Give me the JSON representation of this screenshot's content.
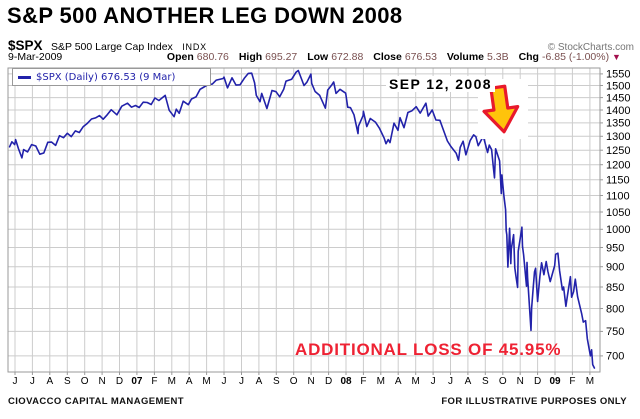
{
  "header": {
    "title": "S&P 500 ANOTHER LEG DOWN 2008",
    "symbol": "$SPX",
    "symbol_name": "S&P 500 Large Cap Index",
    "exchange": "INDX",
    "copyright": "© StockCharts.com",
    "quote": {
      "date": "9-Mar-2009",
      "items": [
        {
          "label": "Open",
          "value": "680.76"
        },
        {
          "label": "High",
          "value": "695.27"
        },
        {
          "label": "Low",
          "value": "672.88"
        },
        {
          "label": "Close",
          "value": "676.53"
        },
        {
          "label": "Volume",
          "value": "5.3B"
        },
        {
          "label": "Chg",
          "value": "-6.85 (-1.00%)"
        }
      ],
      "direction_icon": "▼"
    }
  },
  "legend": {
    "label": "$SPX (Daily) 676.53 (9 Mar)"
  },
  "footer": {
    "left": "CIOVACCO CAPITAL MANAGEMENT",
    "right": "FOR ILLUSTRATIVE PURPOSES ONLY"
  },
  "colors": {
    "line": "#2222aa",
    "grid": "#cccccc",
    "plot_border": "#999999",
    "axis_text": "#000000",
    "loss_text": "#ee2233",
    "arrow_fill": "#ffc30b",
    "arrow_stroke": "#e8192c",
    "quote_value": "#7a5050",
    "triangle": "#a3104d"
  },
  "chart_data": {
    "type": "line",
    "symbol": "$SPX",
    "timeframe": "Daily",
    "last_price": 676.53,
    "last_date": "2009-03-09",
    "annotations": {
      "event_label": "SEP 12, 2008",
      "loss_label": "ADDITIONAL LOSS OF 45.95%",
      "arrow": "yellow-red block arrow pointing down at Sep-Oct 2008 breakdown"
    },
    "x_axis": {
      "start": "Jun 2006",
      "end": "Mar 2009",
      "tick_labels": [
        "J",
        "J",
        "A",
        "S",
        "O",
        "N",
        "D",
        "07",
        "F",
        "M",
        "A",
        "M",
        "J",
        "J",
        "A",
        "S",
        "O",
        "N",
        "D",
        "08",
        "F",
        "M",
        "A",
        "M",
        "J",
        "J",
        "A",
        "S",
        "O",
        "N",
        "D",
        "09",
        "F",
        "M"
      ]
    },
    "y_axis": {
      "scale": "log",
      "min": 664,
      "max": 1576,
      "tick_values": [
        1550,
        1500,
        1450,
        1400,
        1350,
        1300,
        1250,
        1200,
        1150,
        1100,
        1050,
        1000,
        950,
        900,
        850,
        800,
        750,
        700
      ],
      "position": "right"
    },
    "grid": true,
    "legend_position": "top-left",
    "series": [
      {
        "name": "$SPX (Daily) close",
        "points": [
          [
            "2006-05-22",
            1262
          ],
          [
            "2006-05-26",
            1280
          ],
          [
            "2006-05-31",
            1270
          ],
          [
            "2006-06-02",
            1288
          ],
          [
            "2006-06-07",
            1256
          ],
          [
            "2006-06-13",
            1223
          ],
          [
            "2006-06-16",
            1252
          ],
          [
            "2006-06-23",
            1244
          ],
          [
            "2006-06-30",
            1270
          ],
          [
            "2006-07-07",
            1265
          ],
          [
            "2006-07-14",
            1236
          ],
          [
            "2006-07-21",
            1240
          ],
          [
            "2006-07-28",
            1278
          ],
          [
            "2006-08-04",
            1279
          ],
          [
            "2006-08-11",
            1267
          ],
          [
            "2006-08-18",
            1302
          ],
          [
            "2006-08-25",
            1295
          ],
          [
            "2006-09-01",
            1311
          ],
          [
            "2006-09-08",
            1299
          ],
          [
            "2006-09-15",
            1320
          ],
          [
            "2006-09-22",
            1314
          ],
          [
            "2006-09-29",
            1336
          ],
          [
            "2006-10-06",
            1349
          ],
          [
            "2006-10-13",
            1365
          ],
          [
            "2006-10-20",
            1369
          ],
          [
            "2006-10-27",
            1378
          ],
          [
            "2006-11-03",
            1364
          ],
          [
            "2006-11-10",
            1381
          ],
          [
            "2006-11-17",
            1401
          ],
          [
            "2006-11-27",
            1381
          ],
          [
            "2006-12-05",
            1415
          ],
          [
            "2006-12-15",
            1427
          ],
          [
            "2006-12-22",
            1411
          ],
          [
            "2006-12-29",
            1418
          ],
          [
            "2007-01-05",
            1410
          ],
          [
            "2007-01-12",
            1431
          ],
          [
            "2007-01-19",
            1430
          ],
          [
            "2007-01-26",
            1422
          ],
          [
            "2007-02-02",
            1448
          ],
          [
            "2007-02-09",
            1438
          ],
          [
            "2007-02-20",
            1459
          ],
          [
            "2007-02-27",
            1399
          ],
          [
            "2007-03-05",
            1374
          ],
          [
            "2007-03-09",
            1403
          ],
          [
            "2007-03-14",
            1387
          ],
          [
            "2007-03-21",
            1435
          ],
          [
            "2007-03-30",
            1421
          ],
          [
            "2007-04-05",
            1444
          ],
          [
            "2007-04-13",
            1453
          ],
          [
            "2007-04-20",
            1484
          ],
          [
            "2007-04-27",
            1494
          ],
          [
            "2007-05-04",
            1505
          ],
          [
            "2007-05-11",
            1506
          ],
          [
            "2007-05-18",
            1523
          ],
          [
            "2007-05-30",
            1530
          ],
          [
            "2007-06-01",
            1536
          ],
          [
            "2007-06-07",
            1490
          ],
          [
            "2007-06-15",
            1533
          ],
          [
            "2007-06-22",
            1502
          ],
          [
            "2007-06-29",
            1503
          ],
          [
            "2007-07-06",
            1531
          ],
          [
            "2007-07-13",
            1552
          ],
          [
            "2007-07-19",
            1553
          ],
          [
            "2007-07-24",
            1511
          ],
          [
            "2007-07-27",
            1459
          ],
          [
            "2007-08-03",
            1433
          ],
          [
            "2007-08-06",
            1467
          ],
          [
            "2007-08-15",
            1406
          ],
          [
            "2007-08-24",
            1479
          ],
          [
            "2007-08-31",
            1474
          ],
          [
            "2007-09-07",
            1453
          ],
          [
            "2007-09-14",
            1484
          ],
          [
            "2007-09-18",
            1519
          ],
          [
            "2007-09-28",
            1527
          ],
          [
            "2007-10-05",
            1557
          ],
          [
            "2007-10-09",
            1565
          ],
          [
            "2007-10-19",
            1500
          ],
          [
            "2007-10-24",
            1514
          ],
          [
            "2007-10-31",
            1549
          ],
          [
            "2007-11-02",
            1509
          ],
          [
            "2007-11-08",
            1475
          ],
          [
            "2007-11-16",
            1459
          ],
          [
            "2007-11-26",
            1407
          ],
          [
            "2007-11-30",
            1481
          ],
          [
            "2007-12-07",
            1504
          ],
          [
            "2007-12-10",
            1515
          ],
          [
            "2007-12-14",
            1467
          ],
          [
            "2007-12-21",
            1484
          ],
          [
            "2007-12-31",
            1468
          ],
          [
            "2008-01-04",
            1411
          ],
          [
            "2008-01-09",
            1409
          ],
          [
            "2008-01-15",
            1381
          ],
          [
            "2008-01-22",
            1310
          ],
          [
            "2008-01-23",
            1338
          ],
          [
            "2008-01-31",
            1378
          ],
          [
            "2008-02-01",
            1395
          ],
          [
            "2008-02-07",
            1336
          ],
          [
            "2008-02-13",
            1367
          ],
          [
            "2008-02-22",
            1353
          ],
          [
            "2008-02-29",
            1330
          ],
          [
            "2008-03-07",
            1293
          ],
          [
            "2008-03-10",
            1273
          ],
          [
            "2008-03-14",
            1288
          ],
          [
            "2008-03-17",
            1277
          ],
          [
            "2008-03-24",
            1349
          ],
          [
            "2008-03-31",
            1322
          ],
          [
            "2008-04-04",
            1370
          ],
          [
            "2008-04-11",
            1332
          ],
          [
            "2008-04-18",
            1390
          ],
          [
            "2008-04-25",
            1397
          ],
          [
            "2008-05-02",
            1413
          ],
          [
            "2008-05-09",
            1388
          ],
          [
            "2008-05-19",
            1427
          ],
          [
            "2008-05-23",
            1376
          ],
          [
            "2008-05-30",
            1400
          ],
          [
            "2008-06-06",
            1361
          ],
          [
            "2008-06-13",
            1360
          ],
          [
            "2008-06-20",
            1318
          ],
          [
            "2008-06-26",
            1283
          ],
          [
            "2008-07-02",
            1262
          ],
          [
            "2008-07-11",
            1239
          ],
          [
            "2008-07-15",
            1215
          ],
          [
            "2008-07-18",
            1260
          ],
          [
            "2008-07-23",
            1282
          ],
          [
            "2008-07-28",
            1234
          ],
          [
            "2008-08-05",
            1285
          ],
          [
            "2008-08-11",
            1305
          ],
          [
            "2008-08-15",
            1298
          ],
          [
            "2008-08-19",
            1266
          ],
          [
            "2008-08-28",
            1300
          ],
          [
            "2008-09-05",
            1242
          ],
          [
            "2008-09-08",
            1268
          ],
          [
            "2008-09-12",
            1252
          ],
          [
            "2008-09-15",
            1193
          ],
          [
            "2008-09-17",
            1156
          ],
          [
            "2008-09-19",
            1255
          ],
          [
            "2008-09-26",
            1213
          ],
          [
            "2008-09-29",
            1106
          ],
          [
            "2008-09-30",
            1166
          ],
          [
            "2008-10-03",
            1099
          ],
          [
            "2008-10-06",
            1057
          ],
          [
            "2008-10-07",
            996
          ],
          [
            "2008-10-08",
            985
          ],
          [
            "2008-10-10",
            899
          ],
          [
            "2008-10-13",
            1003
          ],
          [
            "2008-10-15",
            908
          ],
          [
            "2008-10-16",
            946
          ],
          [
            "2008-10-20",
            985
          ],
          [
            "2008-10-22",
            897
          ],
          [
            "2008-10-24",
            877
          ],
          [
            "2008-10-27",
            849
          ],
          [
            "2008-10-28",
            940
          ],
          [
            "2008-10-31",
            969
          ],
          [
            "2008-11-04",
            1006
          ],
          [
            "2008-11-05",
            953
          ],
          [
            "2008-11-07",
            931
          ],
          [
            "2008-11-12",
            852
          ],
          [
            "2008-11-13",
            911
          ],
          [
            "2008-11-14",
            873
          ],
          [
            "2008-11-20",
            752
          ],
          [
            "2008-11-21",
            800
          ],
          [
            "2008-11-24",
            851
          ],
          [
            "2008-11-26",
            887
          ],
          [
            "2008-11-28",
            896
          ],
          [
            "2008-12-01",
            816
          ],
          [
            "2008-12-05",
            876
          ],
          [
            "2008-12-08",
            910
          ],
          [
            "2008-12-12",
            880
          ],
          [
            "2008-12-16",
            913
          ],
          [
            "2008-12-19",
            888
          ],
          [
            "2008-12-23",
            863
          ],
          [
            "2008-12-31",
            903
          ],
          [
            "2009-01-02",
            932
          ],
          [
            "2009-01-06",
            935
          ],
          [
            "2009-01-09",
            890
          ],
          [
            "2009-01-14",
            843
          ],
          [
            "2009-01-16",
            850
          ],
          [
            "2009-01-20",
            805
          ],
          [
            "2009-01-23",
            832
          ],
          [
            "2009-01-28",
            875
          ],
          [
            "2009-01-30",
            826
          ],
          [
            "2009-02-03",
            839
          ],
          [
            "2009-02-06",
            869
          ],
          [
            "2009-02-10",
            827
          ],
          [
            "2009-02-17",
            789
          ],
          [
            "2009-02-20",
            770
          ],
          [
            "2009-02-24",
            773
          ],
          [
            "2009-02-27",
            735
          ],
          [
            "2009-03-02",
            700
          ],
          [
            "2009-03-04",
            712
          ],
          [
            "2009-03-06",
            683
          ],
          [
            "2009-03-09",
            676.53
          ]
        ]
      }
    ]
  }
}
